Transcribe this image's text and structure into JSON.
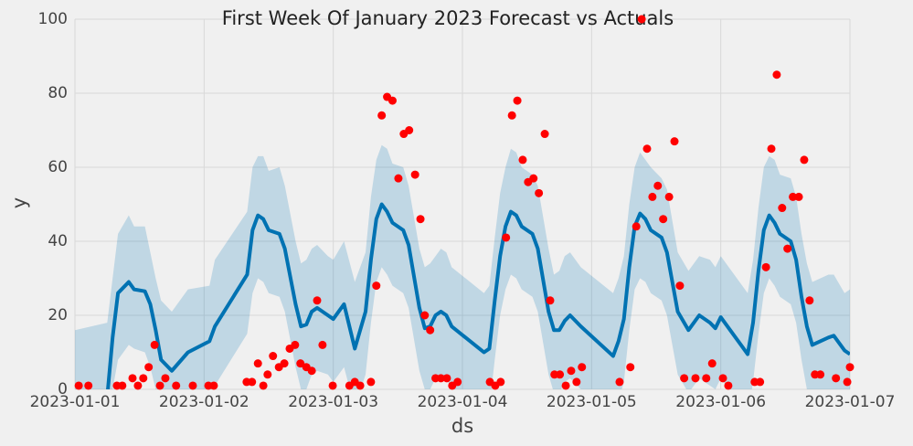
{
  "chart_data": {
    "type": "forecast",
    "title": "First Week Of January 2023 Forecast vs Actuals",
    "x_label": "ds",
    "y_label": "y",
    "xlim": [
      0,
      144
    ],
    "ylim": [
      0,
      100
    ],
    "xticks": [
      {
        "value": 0,
        "label": "2023-01-01"
      },
      {
        "value": 24,
        "label": "2023-01-02"
      },
      {
        "value": 48,
        "label": "2023-01-03"
      },
      {
        "value": 72,
        "label": "2023-01-04"
      },
      {
        "value": 96,
        "label": "2023-01-05"
      },
      {
        "value": 120,
        "label": "2023-01-06"
      },
      {
        "value": 144,
        "label": "2023-01-07"
      }
    ],
    "yticks": [
      0,
      20,
      40,
      60,
      80,
      100
    ],
    "grid": true,
    "forecast": {
      "color": "#0072B2",
      "band_color": "#0072B2",
      "x": [
        0,
        6,
        7,
        8,
        10,
        11,
        13,
        14,
        15,
        16,
        18,
        21,
        25,
        26,
        32,
        33,
        34,
        35,
        36,
        38,
        39,
        41,
        42,
        43,
        44,
        45,
        47,
        48,
        50,
        52,
        54,
        55,
        56,
        57,
        58,
        59,
        61,
        62,
        64,
        65,
        66,
        67,
        68,
        69,
        70,
        76,
        77,
        78,
        79,
        80,
        81,
        82,
        83,
        85,
        86,
        88,
        89,
        90,
        91,
        92,
        94,
        100,
        101,
        102,
        103,
        104,
        105,
        106,
        107,
        109,
        110,
        112,
        114,
        116,
        118,
        119,
        120,
        125,
        126,
        127,
        128,
        129,
        130,
        131,
        133,
        134,
        135,
        136,
        137,
        140,
        141,
        143,
        144
      ],
      "values": [
        -2,
        -2,
        14,
        26,
        29,
        27,
        26.5,
        23,
        16,
        8,
        5,
        10,
        13,
        17,
        31,
        43,
        47,
        46,
        43,
        42,
        38,
        23,
        17,
        17.5,
        21,
        22,
        20,
        19,
        23,
        11,
        21,
        35,
        46,
        50,
        48,
        45,
        43,
        39,
        22,
        16.5,
        17,
        20,
        21,
        20,
        17,
        10,
        11,
        24,
        36,
        44,
        48,
        47,
        44,
        42,
        38,
        21,
        16,
        16,
        18.5,
        20,
        17,
        9,
        13,
        19,
        33,
        44,
        47.5,
        46,
        43,
        41,
        37,
        21,
        16,
        20,
        18,
        16.5,
        19.5,
        9.5,
        18,
        32,
        43,
        47,
        45,
        42,
        40,
        35,
        25,
        17,
        12,
        14,
        14.5,
        10.5,
        9.5
      ],
      "lower": [
        -18,
        -17,
        0,
        8,
        12,
        11,
        10,
        6,
        0,
        -8,
        -12,
        -6,
        -3,
        1,
        15,
        26,
        30,
        29,
        26,
        25,
        21,
        6,
        0,
        0,
        4,
        5,
        4,
        2,
        6,
        -5,
        4,
        18,
        29,
        33,
        31,
        28,
        26,
        22,
        5,
        0,
        0,
        3,
        4,
        3,
        0,
        -6,
        -5,
        8,
        20,
        27,
        31,
        30,
        27,
        25,
        21,
        4,
        -1,
        -1,
        2,
        3,
        0,
        -7,
        -3,
        2,
        16,
        27,
        30,
        29,
        26,
        24,
        20,
        4,
        -1,
        3,
        1,
        0,
        3,
        -7,
        2,
        15,
        26,
        30,
        28,
        25,
        23,
        18,
        8,
        0,
        -5,
        -2,
        -2,
        -6,
        -7
      ],
      "upper": [
        16,
        18,
        30,
        42,
        47,
        44,
        44,
        37,
        30,
        24,
        21,
        27,
        28,
        35,
        48,
        60,
        63,
        63,
        59,
        60,
        55,
        40,
        34,
        35,
        38,
        39,
        36,
        35,
        40,
        29,
        37,
        52,
        62,
        66,
        65,
        61,
        60,
        55,
        38,
        33,
        34,
        36,
        38,
        37,
        33,
        26,
        28,
        41,
        53,
        60,
        65,
        64,
        60,
        58,
        55,
        38,
        31,
        32,
        36,
        37,
        33,
        26,
        30,
        36,
        50,
        60,
        64,
        62,
        60,
        57,
        54,
        37,
        32,
        36,
        35,
        33,
        36,
        26,
        35,
        49,
        60,
        63,
        62,
        58,
        57,
        52,
        42,
        34,
        29,
        31,
        31,
        26,
        27
      ]
    },
    "actuals": {
      "color": "#ff0000",
      "x": [
        0.7,
        2.5,
        7.8,
        8.8,
        10.7,
        11.7,
        12.7,
        13.7,
        14.8,
        15.8,
        16.8,
        18.8,
        21.9,
        24.8,
        25.8,
        31.9,
        32.9,
        34,
        35,
        35.8,
        36.8,
        37.9,
        38.9,
        39.9,
        40.9,
        41.9,
        43,
        44,
        45,
        46,
        47.9,
        51,
        52,
        53,
        55,
        56,
        57,
        58,
        59,
        60.1,
        61.1,
        62.1,
        63.2,
        64.2,
        65,
        66,
        67,
        68,
        69.1,
        70.1,
        71.1,
        77.1,
        78.1,
        79.1,
        80.1,
        81.2,
        82.2,
        83.2,
        84.2,
        85.2,
        86.2,
        87.3,
        88.3,
        89.1,
        90.1,
        91.2,
        92.2,
        93.2,
        94.2,
        101.2,
        103.2,
        104.3,
        105.3,
        106.3,
        107.3,
        108.3,
        109.3,
        110.4,
        111.4,
        112.4,
        113.2,
        115.3,
        117.3,
        118.4,
        120.4,
        121.4,
        126.3,
        127.3,
        128.4,
        129.4,
        130.4,
        131.4,
        132.4,
        133.4,
        134.5,
        135.5,
        136.5,
        137.5,
        138.5,
        141.4,
        143.5,
        144
      ],
      "values": [
        1,
        1,
        1,
        1,
        3,
        1,
        3,
        6,
        12,
        1,
        3,
        1,
        1,
        1,
        1,
        2,
        2,
        7,
        1,
        4,
        9,
        6,
        7,
        11,
        12,
        7,
        6,
        5,
        24,
        12,
        1,
        1,
        2,
        1,
        2,
        28,
        74,
        79,
        78,
        57,
        69,
        70,
        58,
        46,
        20,
        16,
        3,
        3,
        3,
        1,
        2,
        2,
        1,
        2,
        41,
        74,
        78,
        62,
        56,
        57,
        53,
        69,
        24,
        4,
        4,
        1,
        5,
        2,
        6,
        2,
        6,
        44,
        100,
        65,
        52,
        55,
        46,
        52,
        67,
        28,
        3,
        3,
        3,
        7,
        3,
        1,
        2,
        2,
        33,
        65,
        85,
        49,
        38,
        52,
        52,
        62,
        24,
        4,
        4,
        3,
        2,
        6
      ]
    }
  }
}
